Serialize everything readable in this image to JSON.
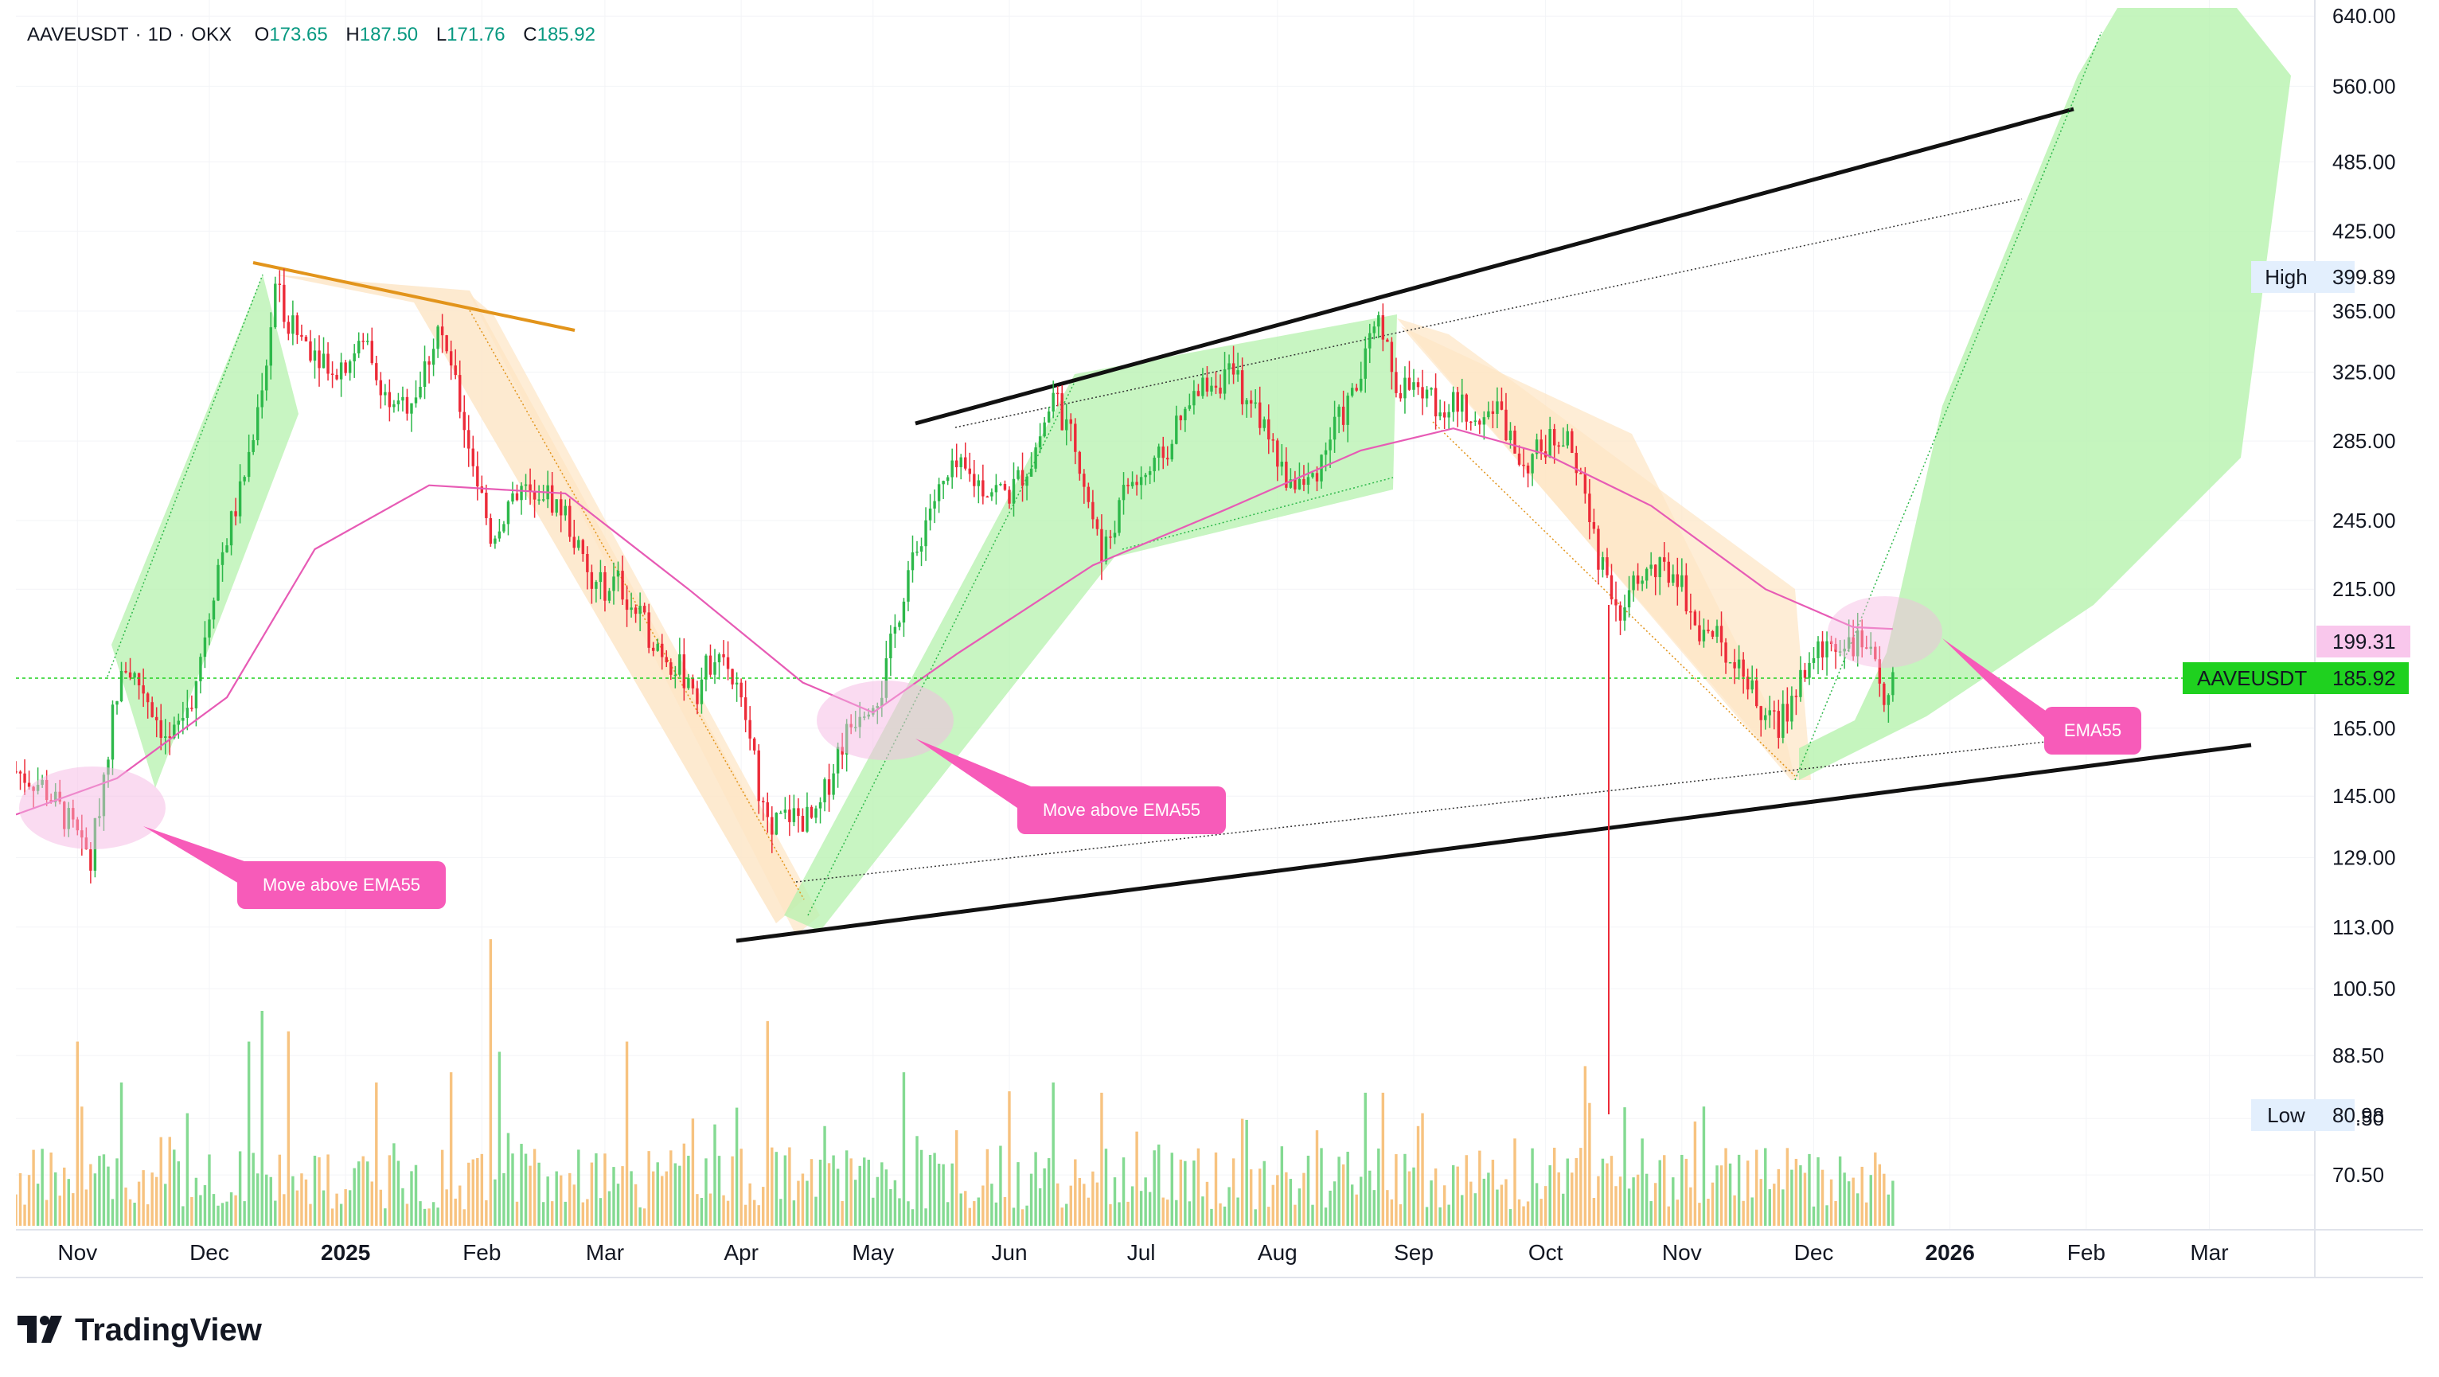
{
  "header": {
    "symbol": "AAVEUSDT",
    "interval": "1D",
    "exchange": "OKX",
    "open_label": "O",
    "open": "173.65",
    "high_label": "H",
    "high": "187.50",
    "low_label": "L",
    "low": "171.76",
    "close_label": "C",
    "close": "185.92"
  },
  "branding": {
    "logo_text": "TradingView"
  },
  "chart_data": {
    "type": "candlestick",
    "y_scale": "log",
    "ylim": [
      64,
      650
    ],
    "xlim": [
      "2024-10-18",
      "2026-03-25"
    ],
    "y_ticks": [
      "640.00",
      "560.00",
      "485.00",
      "425.00",
      "365.00",
      "325.00",
      "285.00",
      "245.00",
      "215.00",
      "165.00",
      "145.00",
      "129.00",
      "113.00",
      "100.50",
      "88.50",
      "78.50",
      "70.50"
    ],
    "x_ticks": [
      {
        "label": "Nov",
        "date": "2024-11-01",
        "bold": false
      },
      {
        "label": "Dec",
        "date": "2024-12-01",
        "bold": false
      },
      {
        "label": "2025",
        "date": "2025-01-01",
        "bold": true
      },
      {
        "label": "Feb",
        "date": "2025-02-01",
        "bold": false
      },
      {
        "label": "Mar",
        "date": "2025-03-01",
        "bold": false
      },
      {
        "label": "Apr",
        "date": "2025-04-01",
        "bold": false
      },
      {
        "label": "May",
        "date": "2025-05-01",
        "bold": false
      },
      {
        "label": "Jun",
        "date": "2025-06-01",
        "bold": false
      },
      {
        "label": "Jul",
        "date": "2025-07-01",
        "bold": false
      },
      {
        "label": "Aug",
        "date": "2025-08-01",
        "bold": false
      },
      {
        "label": "Sep",
        "date": "2025-09-01",
        "bold": false
      },
      {
        "label": "Oct",
        "date": "2025-10-01",
        "bold": false
      },
      {
        "label": "Nov",
        "date": "2025-11-01",
        "bold": false
      },
      {
        "label": "Dec",
        "date": "2025-12-01",
        "bold": false
      },
      {
        "label": "2026",
        "date": "2026-01-01",
        "bold": true
      },
      {
        "label": "Feb",
        "date": "2026-02-01",
        "bold": false
      },
      {
        "label": "Mar",
        "date": "2026-03-01",
        "bold": false
      }
    ],
    "price_path": [
      [
        "2024-10-18",
        152
      ],
      [
        "2024-10-24",
        148
      ],
      [
        "2024-10-30",
        138
      ],
      [
        "2024-11-04",
        128
      ],
      [
        "2024-11-08",
        160
      ],
      [
        "2024-11-11",
        188
      ],
      [
        "2024-11-16",
        178
      ],
      [
        "2024-11-22",
        160
      ],
      [
        "2024-11-27",
        175
      ],
      [
        "2024-12-03",
        225
      ],
      [
        "2024-12-08",
        258
      ],
      [
        "2024-12-13",
        310
      ],
      [
        "2024-12-16",
        382
      ],
      [
        "2024-12-20",
        352
      ],
      [
        "2024-12-25",
        340
      ],
      [
        "2024-12-30",
        328
      ],
      [
        "2025-01-06",
        345
      ],
      [
        "2025-01-12",
        298
      ],
      [
        "2025-01-18",
        318
      ],
      [
        "2025-01-22",
        355
      ],
      [
        "2025-01-27",
        305
      ],
      [
        "2025-02-03",
        238
      ],
      [
        "2025-02-08",
        258
      ],
      [
        "2025-02-14",
        262
      ],
      [
        "2025-02-20",
        248
      ],
      [
        "2025-02-26",
        215
      ],
      [
        "2025-03-04",
        218
      ],
      [
        "2025-03-10",
        200
      ],
      [
        "2025-03-16",
        188
      ],
      [
        "2025-03-22",
        178
      ],
      [
        "2025-03-27",
        195
      ],
      [
        "2025-04-02",
        168
      ],
      [
        "2025-04-07",
        136
      ],
      [
        "2025-04-12",
        140
      ],
      [
        "2025-04-18",
        138
      ],
      [
        "2025-04-23",
        158
      ],
      [
        "2025-04-28",
        172
      ],
      [
        "2025-05-03",
        178
      ],
      [
        "2025-05-08",
        215
      ],
      [
        "2025-05-14",
        252
      ],
      [
        "2025-05-20",
        270
      ],
      [
        "2025-05-26",
        262
      ],
      [
        "2025-06-01",
        258
      ],
      [
        "2025-06-06",
        275
      ],
      [
        "2025-06-11",
        310
      ],
      [
        "2025-06-17",
        275
      ],
      [
        "2025-06-22",
        228
      ],
      [
        "2025-06-28",
        262
      ],
      [
        "2025-07-04",
        270
      ],
      [
        "2025-07-10",
        295
      ],
      [
        "2025-07-16",
        320
      ],
      [
        "2025-07-22",
        322
      ],
      [
        "2025-07-28",
        298
      ],
      [
        "2025-08-03",
        265
      ],
      [
        "2025-08-08",
        262
      ],
      [
        "2025-08-14",
        292
      ],
      [
        "2025-08-19",
        315
      ],
      [
        "2025-08-24",
        358
      ],
      [
        "2025-08-28",
        318
      ],
      [
        "2025-09-03",
        312
      ],
      [
        "2025-09-08",
        305
      ],
      [
        "2025-09-14",
        302
      ],
      [
        "2025-09-20",
        302
      ],
      [
        "2025-09-26",
        272
      ],
      [
        "2025-10-02",
        285
      ],
      [
        "2025-10-06",
        292
      ],
      [
        "2025-10-10",
        255
      ],
      [
        "2025-10-13",
        230
      ],
      [
        "2025-10-18",
        208
      ],
      [
        "2025-10-24",
        222
      ],
      [
        "2025-10-31",
        222
      ],
      [
        "2025-11-04",
        202
      ],
      [
        "2025-11-09",
        195
      ],
      [
        "2025-11-14",
        188
      ],
      [
        "2025-11-18",
        172
      ],
      [
        "2025-11-23",
        165
      ],
      [
        "2025-11-28",
        182
      ],
      [
        "2025-12-03",
        192
      ],
      [
        "2025-12-08",
        196
      ],
      [
        "2025-12-13",
        192
      ],
      [
        "2025-12-17",
        175
      ],
      [
        "2025-12-19",
        185.92
      ]
    ],
    "ema55_path": [
      [
        "2024-10-18",
        140
      ],
      [
        "2024-11-10",
        150
      ],
      [
        "2024-12-05",
        175
      ],
      [
        "2024-12-25",
        232
      ],
      [
        "2025-01-20",
        262
      ],
      [
        "2025-02-20",
        258
      ],
      [
        "2025-03-20",
        215
      ],
      [
        "2025-04-15",
        180
      ],
      [
        "2025-05-01",
        170
      ],
      [
        "2025-05-20",
        190
      ],
      [
        "2025-06-20",
        225
      ],
      [
        "2025-07-20",
        250
      ],
      [
        "2025-08-20",
        280
      ],
      [
        "2025-09-10",
        292
      ],
      [
        "2025-10-01",
        278
      ],
      [
        "2025-10-25",
        252
      ],
      [
        "2025-11-20",
        215
      ],
      [
        "2025-12-10",
        200
      ],
      [
        "2025-12-19",
        199.31
      ]
    ],
    "volume": [
      [
        "2024-11-01",
        90
      ],
      [
        "2024-11-11",
        70
      ],
      [
        "2024-11-26",
        55
      ],
      [
        "2024-12-10",
        90
      ],
      [
        "2024-12-13",
        105
      ],
      [
        "2024-12-19",
        95
      ],
      [
        "2025-01-08",
        70
      ],
      [
        "2025-01-25",
        75
      ],
      [
        "2025-02-03",
        140
      ],
      [
        "2025-02-05",
        85
      ],
      [
        "2025-03-06",
        90
      ],
      [
        "2025-04-07",
        100
      ],
      [
        "2025-05-08",
        75
      ],
      [
        "2025-06-11",
        70
      ],
      [
        "2025-06-22",
        65
      ],
      [
        "2025-08-21",
        65
      ],
      [
        "2025-08-25",
        65
      ],
      [
        "2025-10-10",
        78
      ],
      [
        "2025-10-11",
        60
      ]
    ],
    "annotations": {
      "pill_1": "Move above EMA55",
      "pill_2": "Move above EMA55",
      "pill_3": "EMA55"
    },
    "labels": {
      "high_label": "High",
      "high_value": "399.89",
      "low_label": "Low",
      "low_value": "80.98",
      "ema_value": "199.31",
      "symbol_label": "AAVEUSDT",
      "last_value": "185.92"
    },
    "colors": {
      "up": "#26a69a",
      "down": "#ef5350",
      "bull": "#2db84a",
      "bear": "#ec2b39",
      "ema": "#e75bb5",
      "pill": "#f75bb9",
      "green_zone": "#b6f2ae",
      "orange_zone": "#fde5c4",
      "orange_line": "#e2941b",
      "last_price": "#1fd11f",
      "ema_label": "#f9c7ec"
    }
  }
}
